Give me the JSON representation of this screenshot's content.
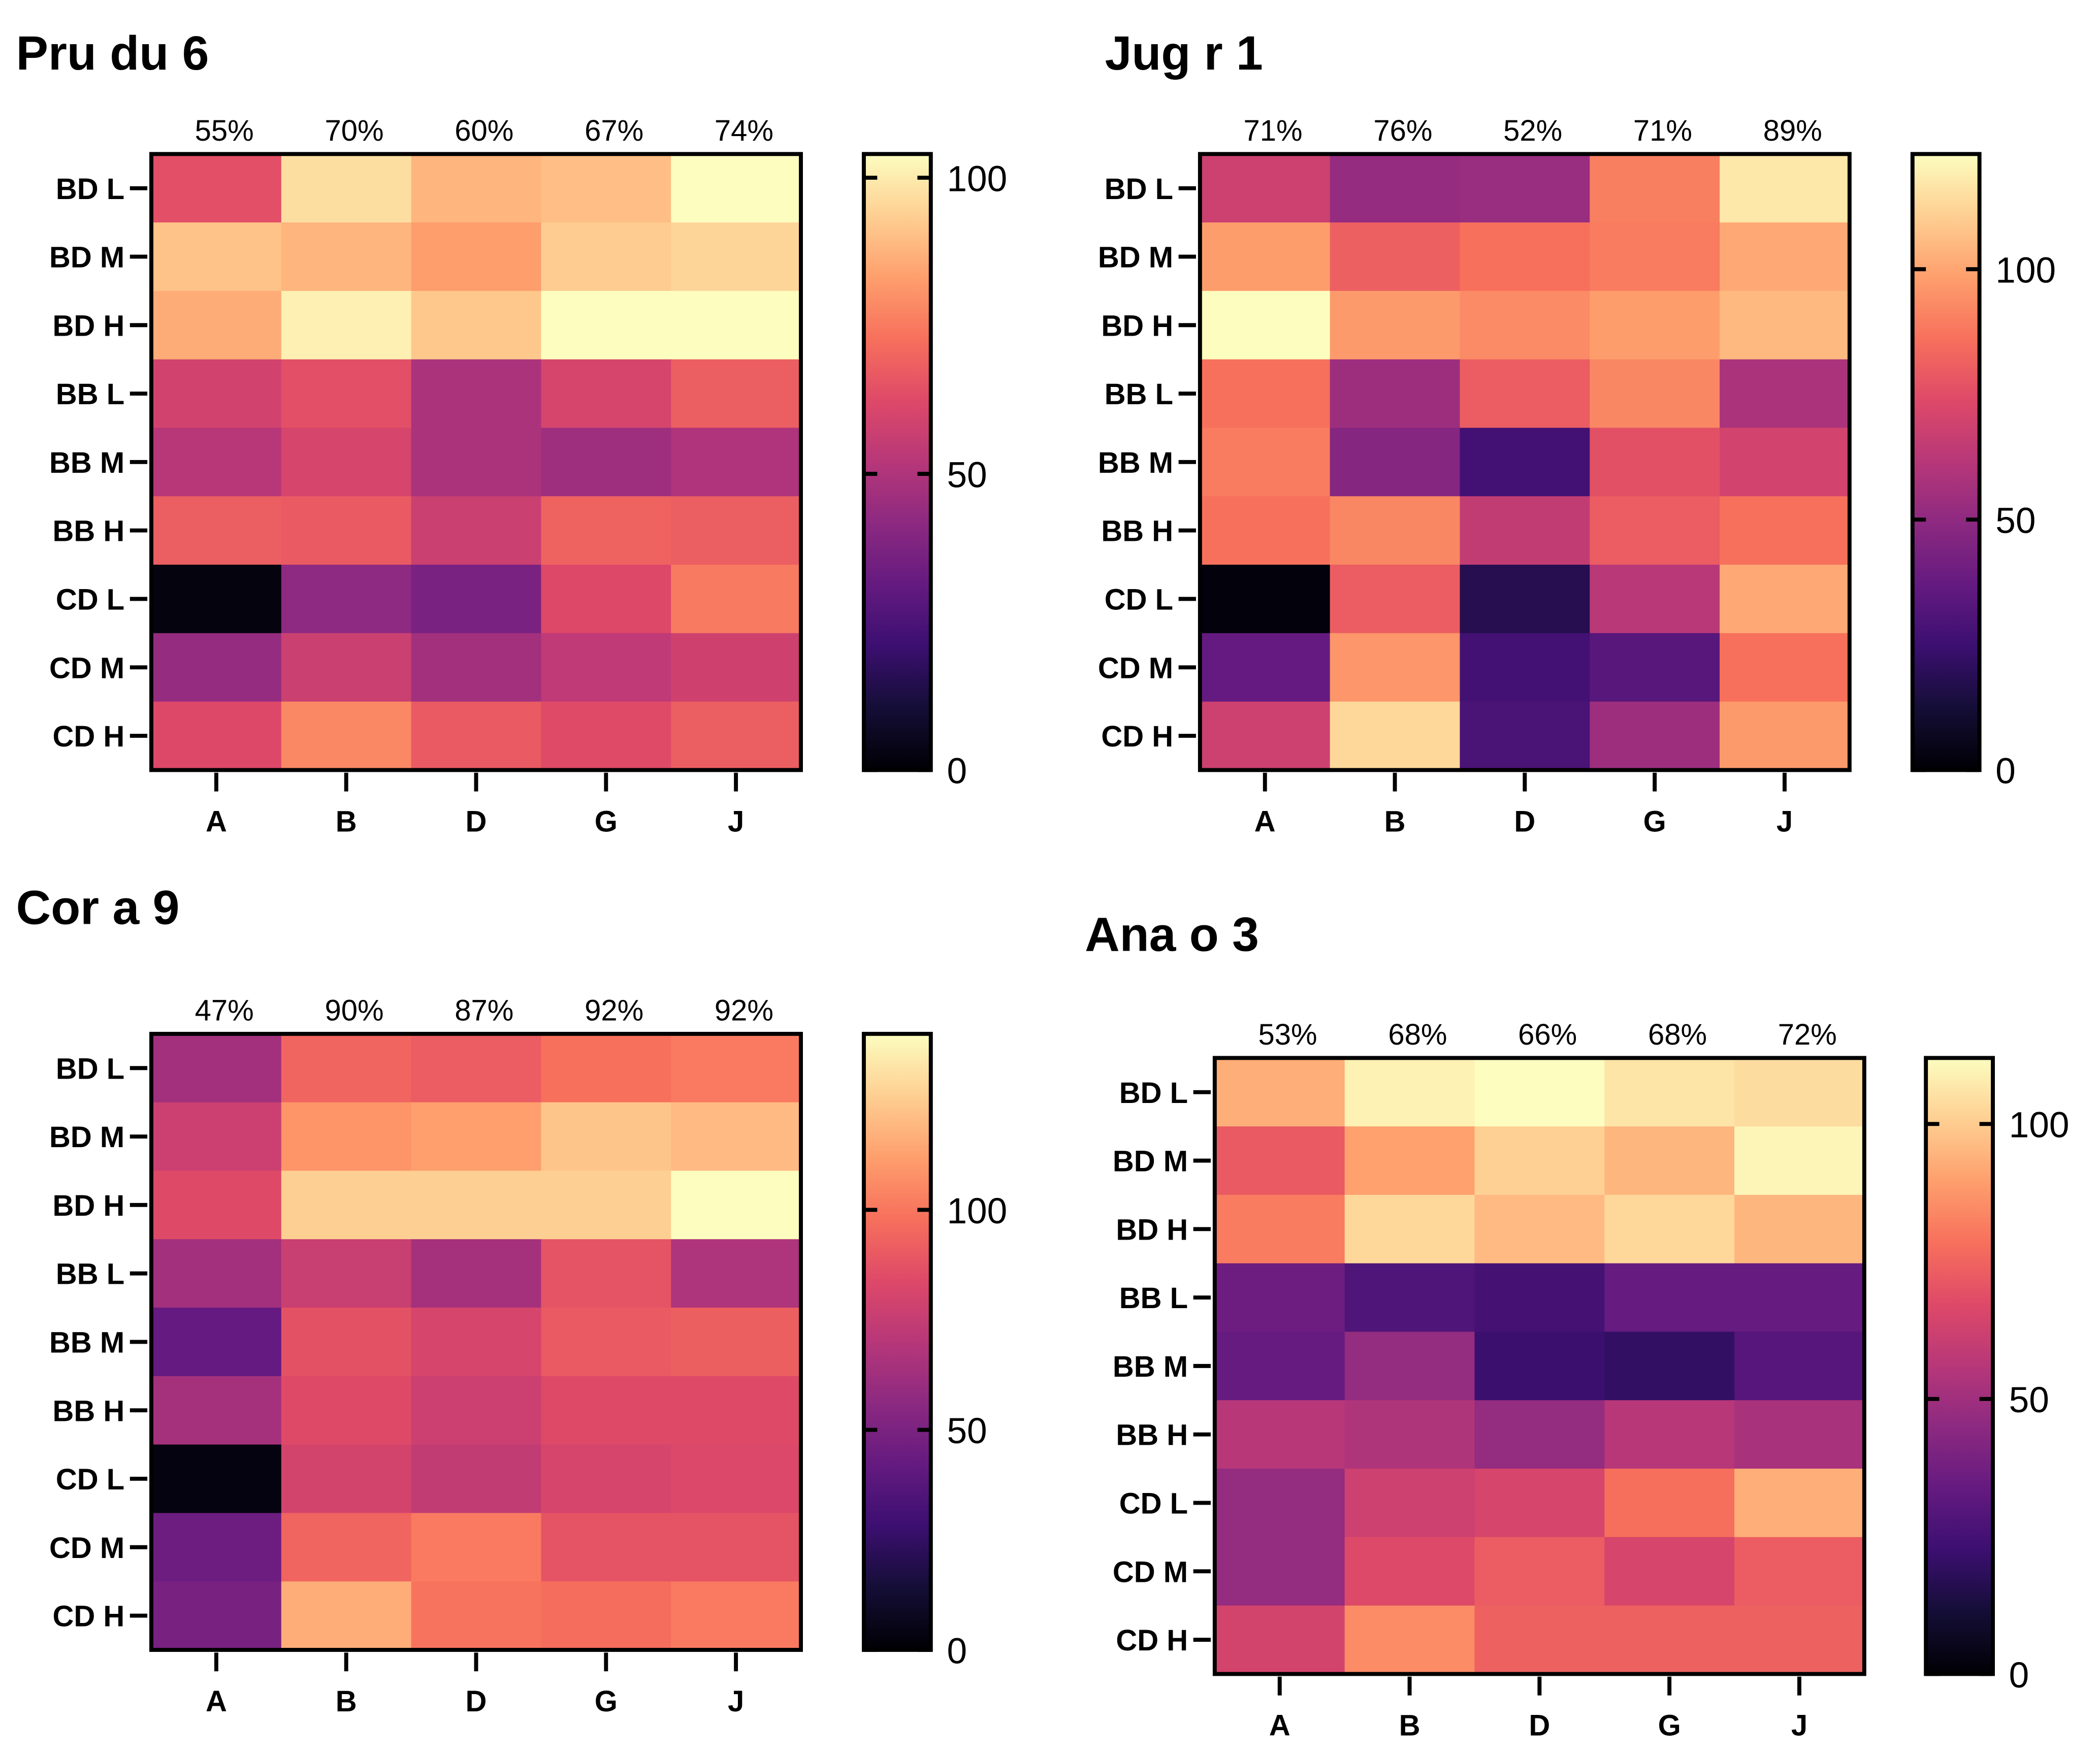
{
  "chart_data": [
    {
      "type": "heatmap",
      "title": "Pru du 6",
      "rows": [
        "BD L",
        "BD M",
        "BD H",
        "BB L",
        "BB M",
        "BB H",
        "CD L",
        "CD M",
        "CD H"
      ],
      "columns": [
        "A",
        "B",
        "D",
        "G",
        "J"
      ],
      "column_percentages": [
        "55%",
        "70%",
        "60%",
        "67%",
        "74%"
      ],
      "values": [
        [
          64,
          97,
          88,
          90,
          104
        ],
        [
          91,
          88,
          83,
          93,
          95
        ],
        [
          86,
          101,
          92,
          104,
          104
        ],
        [
          59,
          64,
          49,
          60,
          68
        ],
        [
          52,
          60,
          49,
          46,
          50
        ],
        [
          68,
          67,
          57,
          69,
          68
        ],
        [
          2,
          42,
          37,
          62,
          75
        ],
        [
          44,
          57,
          47,
          54,
          58
        ],
        [
          62,
          78,
          67,
          63,
          68
        ]
      ],
      "colorbar": {
        "min": 0,
        "max": 104,
        "ticks": [
          0,
          50,
          100
        ],
        "colormap": "magma"
      }
    },
    {
      "type": "heatmap",
      "title": "Jug r 1",
      "rows": [
        "BD L",
        "BD M",
        "BD H",
        "BB L",
        "BB M",
        "BB H",
        "CD L",
        "CD M",
        "CD H"
      ],
      "columns": [
        "A",
        "B",
        "D",
        "G",
        "J"
      ],
      "column_percentages": [
        "71%",
        "76%",
        "52%",
        "71%",
        "89%"
      ],
      "values": [
        [
          68,
          52,
          53,
          90,
          117
        ],
        [
          98,
          81,
          86,
          89,
          101
        ],
        [
          123,
          97,
          93,
          98,
          105
        ],
        [
          86,
          54,
          80,
          92,
          58
        ],
        [
          89,
          47,
          27,
          76,
          70
        ],
        [
          86,
          92,
          65,
          80,
          86
        ],
        [
          2,
          80,
          18,
          62,
          101
        ],
        [
          37,
          96,
          27,
          33,
          86
        ],
        [
          68,
          113,
          29,
          54,
          97
        ]
      ],
      "colorbar": {
        "min": 0,
        "max": 123,
        "ticks": [
          0,
          50,
          100
        ],
        "colormap": "magma"
      }
    },
    {
      "type": "heatmap",
      "title": "Cor a 9",
      "rows": [
        "BD L",
        "BD M",
        "BD H",
        "BB L",
        "BB M",
        "BB H",
        "CD L",
        "CD M",
        "CD H"
      ],
      "columns": [
        "A",
        "B",
        "D",
        "G",
        "J"
      ],
      "column_percentages": [
        "47%",
        "90%",
        "87%",
        "92%",
        "92%"
      ],
      "values": [
        [
          63,
          94,
          91,
          98,
          101
        ],
        [
          77,
          109,
          112,
          123,
          120
        ],
        [
          84,
          126,
          126,
          126,
          140
        ],
        [
          63,
          76,
          64,
          88,
          67
        ],
        [
          42,
          87,
          81,
          90,
          92
        ],
        [
          64,
          84,
          77,
          84,
          84
        ],
        [
          3,
          80,
          74,
          81,
          83
        ],
        [
          45,
          94,
          101,
          88,
          88
        ],
        [
          49,
          116,
          99,
          97,
          101
        ]
      ],
      "colorbar": {
        "min": 0,
        "max": 140,
        "ticks": [
          0,
          50,
          100
        ],
        "colormap": "magma"
      }
    },
    {
      "type": "heatmap",
      "title": "Ana o 3",
      "rows": [
        "BD L",
        "BD M",
        "BD H",
        "BB L",
        "BB M",
        "BB H",
        "CD L",
        "CD M",
        "CD H"
      ],
      "columns": [
        "A",
        "B",
        "D",
        "G",
        "J"
      ],
      "column_percentages": [
        "53%",
        "68%",
        "66%",
        "68%",
        "72%"
      ],
      "values": [
        [
          93,
          109,
          112,
          106,
          104
        ],
        [
          72,
          90,
          101,
          95,
          110
        ],
        [
          81,
          103,
          96,
          103,
          95
        ],
        [
          36,
          28,
          25,
          34,
          34
        ],
        [
          34,
          47,
          22,
          20,
          30
        ],
        [
          56,
          54,
          47,
          56,
          52
        ],
        [
          47,
          62,
          65,
          78,
          93
        ],
        [
          47,
          67,
          73,
          65,
          73
        ],
        [
          64,
          85,
          74,
          74,
          74
        ]
      ],
      "colorbar": {
        "min": 0,
        "max": 112,
        "ticks": [
          0,
          50,
          100
        ],
        "colormap": "magma"
      }
    }
  ]
}
